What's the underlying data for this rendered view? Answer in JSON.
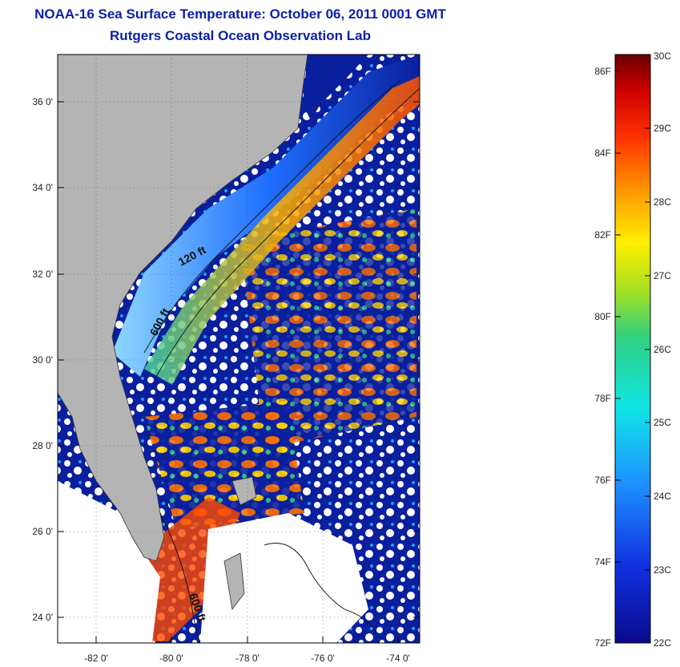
{
  "title": "NOAA-16 Sea Surface Temperature:  October 06, 2011 0001 GMT",
  "subtitle": "Rutgers Coastal Ocean Observation Lab",
  "map": {
    "lat_ticks": [
      "36 0'",
      "34 0'",
      "32 0'",
      "30 0'",
      "28 0'",
      "26 0'",
      "24 0'"
    ],
    "lon_ticks": [
      "-82 0'",
      "-80 0'",
      "-78 0'",
      "-76 0'",
      "-74 0'"
    ],
    "contour_labels": [
      "120 ft",
      "600 ft",
      "600 ft"
    ],
    "colors": {
      "land": "#b4b4b4",
      "cold": "#0a1f9e",
      "warm": "#ff4a00",
      "cloud": "#ffffff"
    }
  },
  "colorbar": {
    "fahrenheit": [
      "86F",
      "84F",
      "82F",
      "80F",
      "78F",
      "76F",
      "74F",
      "72F"
    ],
    "celsius": [
      "30C",
      "29C",
      "28C",
      "27C",
      "26C",
      "25C",
      "24C",
      "23C",
      "22C"
    ],
    "range_c": [
      22,
      30
    ],
    "range_f": [
      72,
      86
    ]
  }
}
